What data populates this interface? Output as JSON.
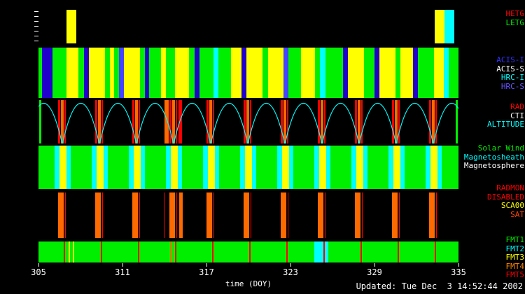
{
  "footer": {
    "updated": "Updated: Tue Dec  3 14:52:44 2002"
  },
  "labels": {
    "groups": [
      {
        "band": "gratings",
        "items": [
          {
            "text": "HETG",
            "color": "#ff0000"
          },
          {
            "text": "LETG",
            "color": "#00ee00"
          }
        ]
      },
      {
        "band": "instruments",
        "items": [
          {
            "text": "ACIS-I",
            "color": "#3333ff"
          },
          {
            "text": "ACIS-S",
            "color": "#ffffff"
          },
          {
            "text": "HRC-I",
            "color": "#00ffff"
          },
          {
            "text": "HRC-S",
            "color": "#6655ff"
          }
        ]
      },
      {
        "band": "altitude",
        "items": [
          {
            "text": "RAD",
            "color": "#ff0000"
          },
          {
            "text": "CTI",
            "color": "#ffffff"
          },
          {
            "text": "ALTITUDE",
            "color": "#00ffff"
          }
        ]
      },
      {
        "band": "regions",
        "items": [
          {
            "text": "Solar Wind",
            "color": "#00ee00"
          },
          {
            "text": "Magnetosheath",
            "color": "#00ffff"
          },
          {
            "text": "Magnetosphere",
            "color": "#ffffff"
          }
        ]
      },
      {
        "band": "radmon",
        "items": [
          {
            "text": "RADMON",
            "color": "#ff0000"
          },
          {
            "text": "DISABLED",
            "color": "#ff0000"
          },
          {
            "text": "SCA00",
            "color": "#ffff00"
          },
          {
            "text": "SAT",
            "color": "#ff4400"
          }
        ]
      },
      {
        "band": "telemetry",
        "items": [
          {
            "text": "FMT1",
            "color": "#00ee00"
          },
          {
            "text": "FMT2",
            "color": "#00ffff"
          },
          {
            "text": "FMT3",
            "color": "#ffff00"
          },
          {
            "text": "FMT4",
            "color": "#ff8800"
          },
          {
            "text": "FMT5",
            "color": "#ff0000"
          }
        ]
      }
    ]
  },
  "chart_data": {
    "type": "timeline-bands",
    "xlabel": "time (DOY)",
    "axis": {
      "start": 305,
      "end": 335,
      "ticks": [
        305,
        311,
        317,
        323,
        329,
        335
      ]
    },
    "palette": {
      "green": "#00ee00",
      "yellow": "#ffff00",
      "navy": "#2200cc",
      "blue": "#4444ff",
      "cyan": "#00ffff",
      "red": "#ff0000",
      "orange": "#ff6a00",
      "black": "#000000",
      "white": "#ffffff"
    },
    "bands": [
      {
        "id": "gratings",
        "base": "black",
        "segments": [
          [
            307.0,
            307.7,
            "yellow"
          ],
          [
            333.3,
            334.0,
            "yellow"
          ],
          [
            334.0,
            334.7,
            "cyan"
          ]
        ]
      },
      {
        "id": "instruments",
        "base": "green",
        "segments": [
          [
            305.0,
            305.25,
            "green"
          ],
          [
            305.25,
            306.0,
            "navy"
          ],
          [
            306.0,
            307.0,
            "green"
          ],
          [
            307.0,
            307.85,
            "yellow"
          ],
          [
            307.85,
            308.25,
            "green"
          ],
          [
            308.25,
            308.6,
            "navy"
          ],
          [
            308.6,
            309.75,
            "yellow"
          ],
          [
            309.75,
            310.1,
            "green"
          ],
          [
            310.1,
            310.4,
            "yellow"
          ],
          [
            310.4,
            310.75,
            "green"
          ],
          [
            310.75,
            311.1,
            "blue"
          ],
          [
            311.1,
            312.25,
            "yellow"
          ],
          [
            312.25,
            312.6,
            "green"
          ],
          [
            312.6,
            312.9,
            "navy"
          ],
          [
            312.9,
            313.75,
            "green"
          ],
          [
            313.75,
            314.1,
            "yellow"
          ],
          [
            314.1,
            314.75,
            "green"
          ],
          [
            314.75,
            315.75,
            "yellow"
          ],
          [
            315.75,
            316.15,
            "green"
          ],
          [
            316.15,
            316.5,
            "navy"
          ],
          [
            316.5,
            317.5,
            "green"
          ],
          [
            317.5,
            317.85,
            "cyan"
          ],
          [
            317.85,
            318.75,
            "green"
          ],
          [
            318.75,
            319.5,
            "yellow"
          ],
          [
            319.5,
            319.85,
            "navy"
          ],
          [
            319.85,
            321.0,
            "yellow"
          ],
          [
            321.0,
            321.4,
            "green"
          ],
          [
            321.4,
            322.5,
            "yellow"
          ],
          [
            322.5,
            322.85,
            "blue"
          ],
          [
            322.85,
            323.75,
            "green"
          ],
          [
            323.75,
            324.75,
            "yellow"
          ],
          [
            324.75,
            325.1,
            "green"
          ],
          [
            325.1,
            325.5,
            "cyan"
          ],
          [
            325.5,
            326.75,
            "green"
          ],
          [
            326.75,
            327.1,
            "navy"
          ],
          [
            327.1,
            328.25,
            "yellow"
          ],
          [
            328.25,
            329.0,
            "green"
          ],
          [
            329.0,
            329.35,
            "navy"
          ],
          [
            329.35,
            330.5,
            "yellow"
          ],
          [
            330.5,
            330.85,
            "green"
          ],
          [
            330.85,
            331.75,
            "yellow"
          ],
          [
            331.75,
            332.1,
            "navy"
          ],
          [
            332.1,
            333.25,
            "green"
          ],
          [
            333.25,
            333.95,
            "yellow"
          ],
          [
            333.95,
            334.3,
            "cyan"
          ],
          [
            334.3,
            335.0,
            "green"
          ]
        ]
      },
      {
        "id": "altitude",
        "base": "black",
        "perigees": [
          304.05,
          306.7,
          309.35,
          312.0,
          314.65,
          317.3,
          319.95,
          322.6,
          325.25,
          327.9,
          330.55,
          333.2,
          335.85
        ],
        "segments": [
          [
            305.05,
            305.18,
            "green"
          ],
          [
            306.42,
            306.56,
            "red"
          ],
          [
            306.6,
            306.78,
            "orange"
          ],
          [
            306.84,
            306.96,
            "red"
          ],
          [
            309.07,
            309.21,
            "red"
          ],
          [
            309.25,
            309.43,
            "orange"
          ],
          [
            309.49,
            309.61,
            "red"
          ],
          [
            311.72,
            311.86,
            "red"
          ],
          [
            311.9,
            312.08,
            "orange"
          ],
          [
            312.14,
            312.26,
            "red"
          ],
          [
            314.0,
            314.3,
            "orange"
          ],
          [
            314.37,
            314.51,
            "red"
          ],
          [
            314.55,
            314.73,
            "orange"
          ],
          [
            314.79,
            314.91,
            "red"
          ],
          [
            315.0,
            315.25,
            "red"
          ],
          [
            317.02,
            317.16,
            "red"
          ],
          [
            317.2,
            317.38,
            "orange"
          ],
          [
            317.44,
            317.56,
            "red"
          ],
          [
            319.67,
            319.81,
            "red"
          ],
          [
            319.85,
            320.03,
            "orange"
          ],
          [
            320.09,
            320.21,
            "red"
          ],
          [
            322.32,
            322.46,
            "red"
          ],
          [
            322.5,
            322.68,
            "orange"
          ],
          [
            322.74,
            322.86,
            "red"
          ],
          [
            324.97,
            325.11,
            "red"
          ],
          [
            325.15,
            325.33,
            "orange"
          ],
          [
            325.39,
            325.51,
            "red"
          ],
          [
            327.62,
            327.76,
            "red"
          ],
          [
            327.8,
            327.98,
            "orange"
          ],
          [
            328.04,
            328.16,
            "red"
          ],
          [
            330.27,
            330.41,
            "red"
          ],
          [
            330.45,
            330.63,
            "orange"
          ],
          [
            330.69,
            330.81,
            "red"
          ],
          [
            332.92,
            333.06,
            "red"
          ],
          [
            333.1,
            333.28,
            "orange"
          ],
          [
            333.34,
            333.46,
            "red"
          ],
          [
            334.82,
            334.95,
            "green"
          ]
        ]
      },
      {
        "id": "regions",
        "base": "green",
        "segments": [
          [
            306.15,
            306.5,
            "cyan"
          ],
          [
            306.5,
            307.0,
            "yellow"
          ],
          [
            307.0,
            307.3,
            "cyan"
          ],
          [
            308.8,
            309.15,
            "cyan"
          ],
          [
            309.15,
            309.65,
            "yellow"
          ],
          [
            309.65,
            309.95,
            "cyan"
          ],
          [
            311.45,
            311.8,
            "cyan"
          ],
          [
            311.8,
            312.3,
            "yellow"
          ],
          [
            312.3,
            312.6,
            "cyan"
          ],
          [
            314.1,
            314.45,
            "cyan"
          ],
          [
            314.45,
            314.95,
            "yellow"
          ],
          [
            314.95,
            315.25,
            "cyan"
          ],
          [
            316.75,
            317.1,
            "cyan"
          ],
          [
            317.1,
            317.6,
            "yellow"
          ],
          [
            317.6,
            317.9,
            "cyan"
          ],
          [
            319.4,
            319.75,
            "cyan"
          ],
          [
            319.75,
            320.25,
            "yellow"
          ],
          [
            320.25,
            320.55,
            "cyan"
          ],
          [
            322.05,
            322.4,
            "cyan"
          ],
          [
            322.4,
            322.9,
            "yellow"
          ],
          [
            322.9,
            323.2,
            "cyan"
          ],
          [
            324.7,
            325.05,
            "cyan"
          ],
          [
            325.05,
            325.55,
            "yellow"
          ],
          [
            325.55,
            325.85,
            "cyan"
          ],
          [
            327.35,
            327.7,
            "cyan"
          ],
          [
            327.7,
            328.2,
            "yellow"
          ],
          [
            328.2,
            328.5,
            "cyan"
          ],
          [
            330.0,
            330.35,
            "cyan"
          ],
          [
            330.35,
            330.85,
            "yellow"
          ],
          [
            330.85,
            331.15,
            "cyan"
          ],
          [
            332.65,
            333.0,
            "cyan"
          ],
          [
            333.0,
            333.5,
            "yellow"
          ],
          [
            333.5,
            333.8,
            "cyan"
          ]
        ]
      },
      {
        "id": "radmon",
        "base": "black",
        "segments": [
          [
            306.4,
            306.8,
            "orange"
          ],
          [
            306.9,
            306.97,
            "red"
          ],
          [
            309.05,
            309.45,
            "orange"
          ],
          [
            309.55,
            309.62,
            "red"
          ],
          [
            311.7,
            312.1,
            "orange"
          ],
          [
            312.2,
            312.27,
            "red"
          ],
          [
            313.95,
            314.02,
            "red"
          ],
          [
            314.35,
            314.75,
            "orange"
          ],
          [
            314.85,
            314.92,
            "red"
          ],
          [
            315.05,
            315.3,
            "orange"
          ],
          [
            317.0,
            317.4,
            "orange"
          ],
          [
            317.5,
            317.57,
            "red"
          ],
          [
            319.65,
            320.05,
            "orange"
          ],
          [
            320.15,
            320.22,
            "red"
          ],
          [
            322.3,
            322.7,
            "orange"
          ],
          [
            322.8,
            322.87,
            "red"
          ],
          [
            324.95,
            325.35,
            "orange"
          ],
          [
            325.45,
            325.52,
            "red"
          ],
          [
            327.6,
            328.0,
            "orange"
          ],
          [
            328.1,
            328.17,
            "red"
          ],
          [
            330.25,
            330.65,
            "orange"
          ],
          [
            330.75,
            330.82,
            "red"
          ],
          [
            332.9,
            333.3,
            "orange"
          ],
          [
            333.4,
            333.47,
            "red"
          ]
        ]
      },
      {
        "id": "telemetry",
        "base": "green",
        "segments": [
          [
            324.7,
            325.7,
            "cyan"
          ],
          [
            307.15,
            307.25,
            "yellow"
          ],
          [
            307.45,
            307.55,
            "yellow"
          ],
          [
            306.8,
            306.88,
            "red"
          ],
          [
            309.45,
            309.53,
            "red"
          ],
          [
            312.1,
            312.18,
            "red"
          ],
          [
            314.4,
            314.52,
            "orange"
          ],
          [
            314.75,
            314.83,
            "red"
          ],
          [
            317.4,
            317.48,
            "red"
          ],
          [
            320.05,
            320.13,
            "red"
          ],
          [
            322.7,
            322.78,
            "red"
          ],
          [
            325.35,
            325.43,
            "red"
          ],
          [
            328.0,
            328.08,
            "red"
          ],
          [
            330.65,
            330.73,
            "red"
          ],
          [
            333.3,
            333.38,
            "red"
          ]
        ]
      }
    ]
  }
}
